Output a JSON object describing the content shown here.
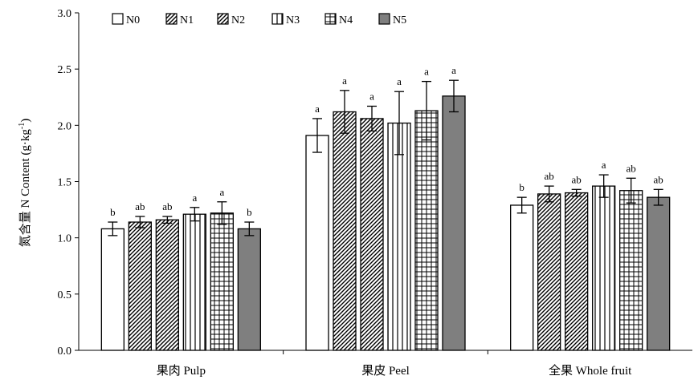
{
  "chart_data": {
    "type": "bar",
    "ylabel": "氮含量 N Content (g·kg",
    "ylabel_sup": "-1",
    "ylabel_close": ")",
    "ylim": [
      0,
      3.0
    ],
    "yticks": [
      "0.0",
      "0.5",
      "1.0",
      "1.5",
      "2.0",
      "2.5",
      "3.0"
    ],
    "categories": [
      "果肉 Pulp",
      "果皮 Peel",
      "全果 Whole fruit"
    ],
    "legend_position": "top-left",
    "series": [
      {
        "name": "N0",
        "pattern": "white",
        "values": [
          1.08,
          1.91,
          1.29
        ],
        "errors": [
          0.06,
          0.15,
          0.07
        ],
        "letters": [
          "b",
          "a",
          "b"
        ]
      },
      {
        "name": "N1",
        "pattern": "diagonal",
        "values": [
          1.14,
          2.12,
          1.39
        ],
        "errors": [
          0.05,
          0.19,
          0.07
        ],
        "letters": [
          "ab",
          "a",
          "ab"
        ]
      },
      {
        "name": "N2",
        "pattern": "diagonal",
        "values": [
          1.16,
          2.06,
          1.4
        ],
        "errors": [
          0.03,
          0.11,
          0.03
        ],
        "letters": [
          "ab",
          "a",
          "ab"
        ]
      },
      {
        "name": "N3",
        "pattern": "vertical",
        "values": [
          1.21,
          2.02,
          1.46
        ],
        "errors": [
          0.06,
          0.28,
          0.1
        ],
        "letters": [
          "a",
          "a",
          "a"
        ]
      },
      {
        "name": "N4",
        "pattern": "grid",
        "values": [
          1.22,
          2.13,
          1.42
        ],
        "errors": [
          0.1,
          0.26,
          0.11
        ],
        "letters": [
          "a",
          "a",
          "ab"
        ]
      },
      {
        "name": "N5",
        "pattern": "gray",
        "values": [
          1.08,
          2.26,
          1.36
        ],
        "errors": [
          0.06,
          0.14,
          0.07
        ],
        "letters": [
          "b",
          "a",
          "ab"
        ]
      }
    ],
    "colors": {
      "gray_fill": "#7f7f7f",
      "stroke": "#000000",
      "background": "#ffffff"
    }
  }
}
